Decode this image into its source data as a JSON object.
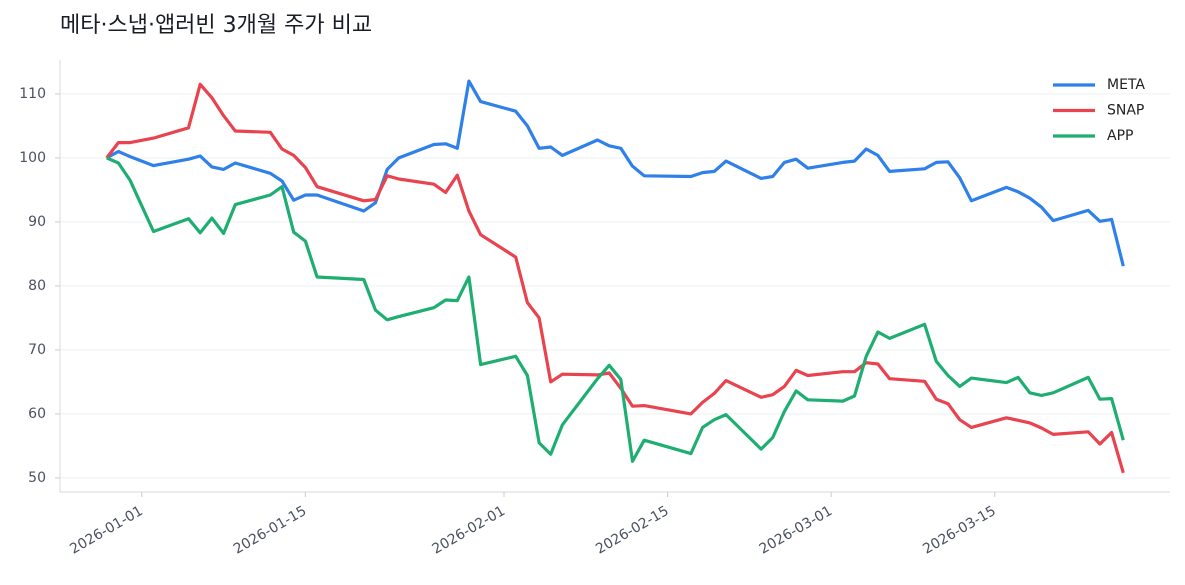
{
  "chart_data": {
    "type": "line",
    "title": "메타·스냅·앱러빈 3개월 주가 비교",
    "x": [
      "2025-12-29",
      "2025-12-30",
      "2025-12-31",
      "2026-01-02",
      "2026-01-05",
      "2026-01-06",
      "2026-01-07",
      "2026-01-08",
      "2026-01-09",
      "2026-01-12",
      "2026-01-13",
      "2026-01-14",
      "2026-01-15",
      "2026-01-16",
      "2026-01-20",
      "2026-01-21",
      "2026-01-22",
      "2026-01-23",
      "2026-01-26",
      "2026-01-27",
      "2026-01-28",
      "2026-01-29",
      "2026-01-30",
      "2026-02-02",
      "2026-02-03",
      "2026-02-04",
      "2026-02-05",
      "2026-02-06",
      "2026-02-09",
      "2026-02-10",
      "2026-02-11",
      "2026-02-12",
      "2026-02-13",
      "2026-02-17",
      "2026-02-18",
      "2026-02-19",
      "2026-02-20",
      "2026-02-23",
      "2026-02-24",
      "2026-02-25",
      "2026-02-26",
      "2026-02-27",
      "2026-03-02",
      "2026-03-03",
      "2026-03-04",
      "2026-03-05",
      "2026-03-06",
      "2026-03-09",
      "2026-03-10",
      "2026-03-11",
      "2026-03-12",
      "2026-03-13",
      "2026-03-16",
      "2026-03-17",
      "2026-03-18",
      "2026-03-19",
      "2026-03-20",
      "2026-03-23",
      "2026-03-24",
      "2026-03-25",
      "2026-03-26"
    ],
    "series": [
      {
        "name": "META",
        "color": "#2f80e8",
        "values": [
          100,
          101,
          100.2,
          98.8,
          99.8,
          100.3,
          98.6,
          98.2,
          99.2,
          97.6,
          96.4,
          93.4,
          94.2,
          94.2,
          91.7,
          93,
          98.2,
          100,
          102.1,
          102.2,
          101.5,
          112,
          108.8,
          107.3,
          105,
          101.5,
          101.7,
          100.4,
          102.8,
          101.9,
          101.5,
          98.7,
          97.2,
          97.1,
          97.7,
          97.9,
          99.5,
          96.8,
          97.1,
          99.3,
          99.8,
          98.4,
          99.3,
          99.5,
          101.4,
          100.4,
          97.9,
          98.3,
          99.3,
          99.4,
          96.9,
          93.3,
          95.4,
          94.7,
          93.7,
          92.3,
          90.2,
          91.8,
          90.1,
          90.4,
          83.1
        ]
      },
      {
        "name": "SNAP",
        "color": "#e8434f",
        "values": [
          100,
          102.4,
          102.4,
          103.1,
          104.7,
          111.5,
          109.4,
          106.6,
          104.2,
          104,
          101.4,
          100.4,
          98.5,
          95.5,
          93.3,
          93.5,
          97.2,
          96.7,
          95.9,
          94.6,
          97.3,
          91.7,
          88,
          84.5,
          77.4,
          75,
          65,
          66.2,
          66.1,
          66.4,
          64,
          61.2,
          61.3,
          60,
          61.8,
          63.2,
          65.2,
          62.6,
          63,
          64.3,
          66.8,
          66,
          66.6,
          66.6,
          68,
          67.8,
          65.5,
          65.1,
          62.3,
          61.6,
          59.1,
          57.9,
          59.4,
          59,
          58.6,
          57.8,
          56.8,
          57.2,
          55.3,
          57.1,
          50.8
        ]
      },
      {
        "name": "APP",
        "color": "#1fae72",
        "values": [
          100,
          99.2,
          96.5,
          88.5,
          90.5,
          88.3,
          90.6,
          88.2,
          92.7,
          94.2,
          95.5,
          88.4,
          87,
          81.4,
          81,
          76.2,
          74.7,
          75.2,
          76.6,
          77.8,
          77.7,
          81.4,
          67.7,
          69,
          66,
          55.5,
          53.7,
          58.3,
          65.5,
          67.6,
          65.4,
          52.6,
          55.9,
          53.8,
          57.9,
          59.1,
          59.9,
          54.5,
          56.3,
          60.4,
          63.6,
          62.2,
          62,
          62.8,
          69,
          72.8,
          71.8,
          74,
          68.2,
          66,
          64.3,
          65.6,
          64.9,
          65.7,
          63.3,
          62.9,
          63.3,
          65.7,
          62.3,
          62.4,
          55.9
        ]
      }
    ],
    "xlim": [
      "2025-12-25",
      "2026-03-30"
    ],
    "xticks": [
      "2026-01-01",
      "2026-01-15",
      "2026-02-01",
      "2026-02-15",
      "2026-03-01",
      "2026-03-15"
    ],
    "ylim": [
      47.8,
      115.3
    ],
    "yticks": [
      50,
      60,
      70,
      80,
      90,
      100,
      110
    ],
    "grid": true,
    "legend": "upper right"
  }
}
